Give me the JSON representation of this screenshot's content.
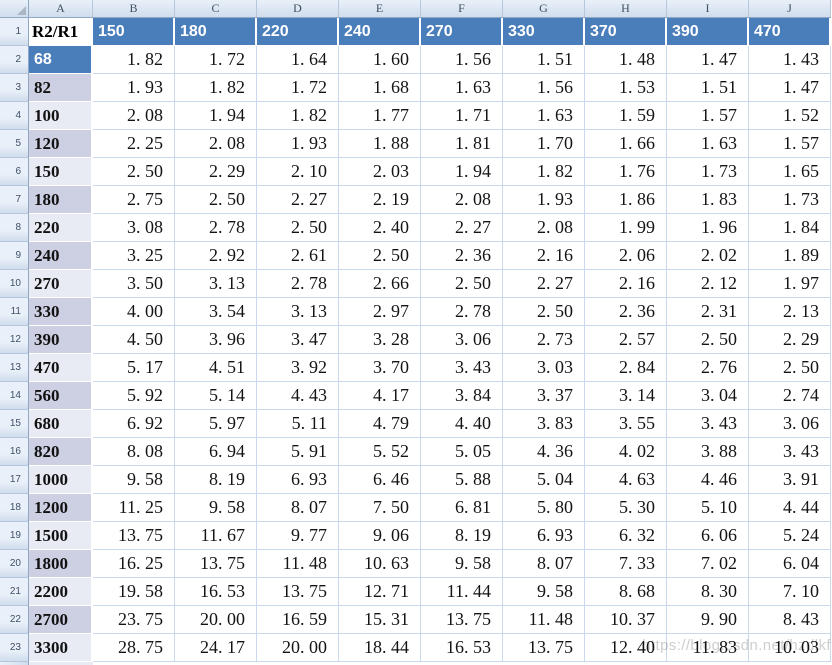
{
  "colors": {
    "header_blue": "#4a7ebb",
    "band_dark": "#cdcfe3",
    "band_light": "#e8eaf4",
    "gridline": "#c9d8eb"
  },
  "sheet": {
    "column_letters": [
      "A",
      "B",
      "C",
      "D",
      "E",
      "F",
      "G",
      "H",
      "I",
      "J"
    ],
    "header_row": {
      "row_number": "1",
      "label": "R2/R1",
      "values": [
        "150",
        "180",
        "220",
        "240",
        "270",
        "330",
        "370",
        "390",
        "470"
      ]
    },
    "rows": [
      {
        "row_number": "2",
        "label": "68",
        "band": "selected",
        "values": [
          "1. 82",
          "1. 72",
          "1. 64",
          "1. 60",
          "1. 56",
          "1. 51",
          "1. 48",
          "1. 47",
          "1. 43"
        ]
      },
      {
        "row_number": "3",
        "label": "82",
        "band": "dark",
        "values": [
          "1. 93",
          "1. 82",
          "1. 72",
          "1. 68",
          "1. 63",
          "1. 56",
          "1. 53",
          "1. 51",
          "1. 47"
        ]
      },
      {
        "row_number": "4",
        "label": "100",
        "band": "light",
        "values": [
          "2. 08",
          "1. 94",
          "1. 82",
          "1. 77",
          "1. 71",
          "1. 63",
          "1. 59",
          "1. 57",
          "1. 52"
        ]
      },
      {
        "row_number": "5",
        "label": "120",
        "band": "dark",
        "values": [
          "2. 25",
          "2. 08",
          "1. 93",
          "1. 88",
          "1. 81",
          "1. 70",
          "1. 66",
          "1. 63",
          "1. 57"
        ]
      },
      {
        "row_number": "6",
        "label": "150",
        "band": "light",
        "values": [
          "2. 50",
          "2. 29",
          "2. 10",
          "2. 03",
          "1. 94",
          "1. 82",
          "1. 76",
          "1. 73",
          "1. 65"
        ]
      },
      {
        "row_number": "7",
        "label": "180",
        "band": "dark",
        "values": [
          "2. 75",
          "2. 50",
          "2. 27",
          "2. 19",
          "2. 08",
          "1. 93",
          "1. 86",
          "1. 83",
          "1. 73"
        ]
      },
      {
        "row_number": "8",
        "label": "220",
        "band": "light",
        "values": [
          "3. 08",
          "2. 78",
          "2. 50",
          "2. 40",
          "2. 27",
          "2. 08",
          "1. 99",
          "1. 96",
          "1. 84"
        ]
      },
      {
        "row_number": "9",
        "label": "240",
        "band": "dark",
        "values": [
          "3. 25",
          "2. 92",
          "2. 61",
          "2. 50",
          "2. 36",
          "2. 16",
          "2. 06",
          "2. 02",
          "1. 89"
        ]
      },
      {
        "row_number": "10",
        "label": "270",
        "band": "light",
        "values": [
          "3. 50",
          "3. 13",
          "2. 78",
          "2. 66",
          "2. 50",
          "2. 27",
          "2. 16",
          "2. 12",
          "1. 97"
        ]
      },
      {
        "row_number": "11",
        "label": "330",
        "band": "dark",
        "values": [
          "4. 00",
          "3. 54",
          "3. 13",
          "2. 97",
          "2. 78",
          "2. 50",
          "2. 36",
          "2. 31",
          "2. 13"
        ]
      },
      {
        "row_number": "12",
        "label": "390",
        "band": "dark",
        "values": [
          "4. 50",
          "3. 96",
          "3. 47",
          "3. 28",
          "3. 06",
          "2. 73",
          "2. 57",
          "2. 50",
          "2. 29"
        ]
      },
      {
        "row_number": "13",
        "label": "470",
        "band": "light",
        "values": [
          "5. 17",
          "4. 51",
          "3. 92",
          "3. 70",
          "3. 43",
          "3. 03",
          "2. 84",
          "2. 76",
          "2. 50"
        ]
      },
      {
        "row_number": "14",
        "label": "560",
        "band": "dark",
        "values": [
          "5. 92",
          "5. 14",
          "4. 43",
          "4. 17",
          "3. 84",
          "3. 37",
          "3. 14",
          "3. 04",
          "2. 74"
        ]
      },
      {
        "row_number": "15",
        "label": "680",
        "band": "light",
        "values": [
          "6. 92",
          "5. 97",
          "5. 11",
          "4. 79",
          "4. 40",
          "3. 83",
          "3. 55",
          "3. 43",
          "3. 06"
        ]
      },
      {
        "row_number": "16",
        "label": "820",
        "band": "dark",
        "values": [
          "8. 08",
          "6. 94",
          "5. 91",
          "5. 52",
          "5. 05",
          "4. 36",
          "4. 02",
          "3. 88",
          "3. 43"
        ]
      },
      {
        "row_number": "17",
        "label": "1000",
        "band": "light",
        "values": [
          "9. 58",
          "8. 19",
          "6. 93",
          "6. 46",
          "5. 88",
          "5. 04",
          "4. 63",
          "4. 46",
          "3. 91"
        ]
      },
      {
        "row_number": "18",
        "label": "1200",
        "band": "dark",
        "values": [
          "11. 25",
          "9. 58",
          "8. 07",
          "7. 50",
          "6. 81",
          "5. 80",
          "5. 30",
          "5. 10",
          "4. 44"
        ]
      },
      {
        "row_number": "19",
        "label": "1500",
        "band": "light",
        "values": [
          "13. 75",
          "11. 67",
          "9. 77",
          "9. 06",
          "8. 19",
          "6. 93",
          "6. 32",
          "6. 06",
          "5. 24"
        ]
      },
      {
        "row_number": "20",
        "label": "1800",
        "band": "dark",
        "values": [
          "16. 25",
          "13. 75",
          "11. 48",
          "10. 63",
          "9. 58",
          "8. 07",
          "7. 33",
          "7. 02",
          "6. 04"
        ]
      },
      {
        "row_number": "21",
        "label": "2200",
        "band": "light",
        "values": [
          "19. 58",
          "16. 53",
          "13. 75",
          "12. 71",
          "11. 44",
          "9. 58",
          "8. 68",
          "8. 30",
          "7. 10"
        ]
      },
      {
        "row_number": "22",
        "label": "2700",
        "band": "dark",
        "values": [
          "23. 75",
          "20. 00",
          "16. 59",
          "15. 31",
          "13. 75",
          "11. 48",
          "10. 37",
          "9. 90",
          "8. 43"
        ]
      },
      {
        "row_number": "23",
        "label": "3300",
        "band": "light",
        "values": [
          "28. 75",
          "24. 17",
          "20. 00",
          "18. 44",
          "16. 53",
          "13. 75",
          "12. 40",
          "11. 83",
          "10. 03"
        ]
      }
    ]
  },
  "watermark": {
    "text": "https://blog.csdn.net/hzdlkf"
  }
}
